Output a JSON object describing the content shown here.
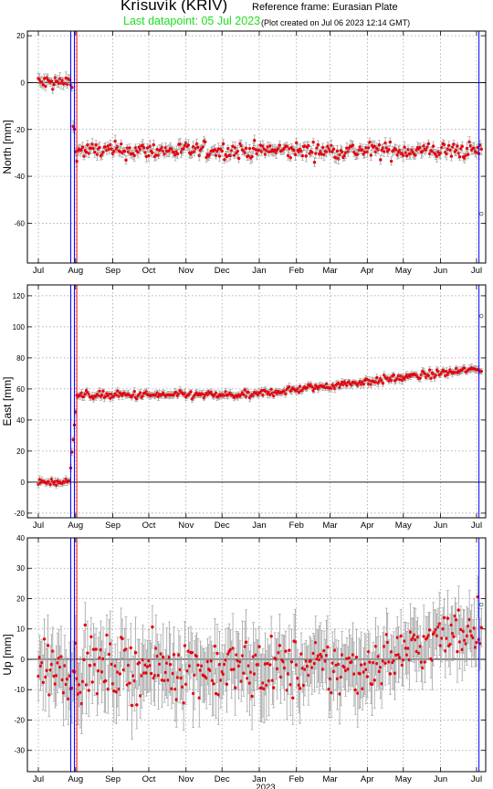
{
  "header": {
    "title": "Krísuvík (KRIV)",
    "reference_frame": "Reference frame: Eurasian Plate",
    "last_datapoint": "Last datapoint: 05 Jul 2023",
    "created": "(Plot created on Jul 06 2023 12:14 GMT)"
  },
  "colors": {
    "data": "#e8000b",
    "error_bar": "#a0a0a0",
    "event_blue": "#0000ff",
    "event_red": "#ff0000",
    "last_point": "#22dd22",
    "outlier": "#4a7a7a"
  },
  "chart_data": [
    {
      "type": "scatter",
      "ylabel": "North [mm]",
      "ylim": [
        -77,
        22
      ],
      "yticks": [
        20,
        0,
        -20,
        -40,
        -60
      ],
      "xlabel": "",
      "grid": true,
      "x_tick_labels": [
        "Jul",
        "Aug",
        "Sep",
        "Oct",
        "Nov",
        "Dec",
        "Jan",
        "Feb",
        "Mar",
        "Apr",
        "May",
        "Jun",
        "Jul"
      ],
      "x_tick_dates": [
        "2022-07-01",
        "2022-08-01",
        "2022-09-01",
        "2022-10-01",
        "2022-11-01",
        "2022-12-01",
        "2023-01-01",
        "2023-02-01",
        "2023-03-01",
        "2023-04-01",
        "2023-05-01",
        "2023-06-01",
        "2023-07-01"
      ],
      "event_lines": [
        {
          "date": "2022-07-28",
          "color": "blue"
        },
        {
          "date": "2022-07-31",
          "color": "blue"
        },
        {
          "date": "2022-08-02",
          "color": "red"
        },
        {
          "date": "2023-07-03",
          "color": "blue"
        }
      ],
      "series": [
        {
          "segments": [
            {
              "start": "2022-07-01",
              "end": "2022-07-29",
              "level": 0,
              "noise": 2.5,
              "error": 2
            },
            {
              "start": "2022-07-30",
              "end": "2022-07-31",
              "level": -20,
              "noise": 1.5,
              "error": 2
            },
            {
              "start": "2022-08-01",
              "end": "2023-07-05",
              "level": -29,
              "noise": 2.5,
              "error": 2
            }
          ],
          "outliers": [
            {
              "date": "2023-07-05",
              "value": -56
            }
          ]
        }
      ]
    },
    {
      "type": "scatter",
      "ylabel": "East [mm]",
      "ylim": [
        -23,
        127
      ],
      "yticks": [
        120,
        100,
        80,
        60,
        40,
        20,
        0,
        -20
      ],
      "xlabel": "",
      "grid": true,
      "x_tick_labels": [
        "Jul",
        "Aug",
        "Sep",
        "Oct",
        "Nov",
        "Dec",
        "Jan",
        "Feb",
        "Mar",
        "Apr",
        "May",
        "Jun",
        "Jul"
      ],
      "x_tick_dates": [
        "2022-07-01",
        "2022-08-01",
        "2022-09-01",
        "2022-10-01",
        "2022-11-01",
        "2022-12-01",
        "2023-01-01",
        "2023-02-01",
        "2023-03-01",
        "2023-04-01",
        "2023-05-01",
        "2023-06-01",
        "2023-07-01"
      ],
      "event_lines": [
        {
          "date": "2022-07-28",
          "color": "blue"
        },
        {
          "date": "2022-07-31",
          "color": "blue"
        },
        {
          "date": "2022-08-02",
          "color": "red"
        },
        {
          "date": "2023-07-03",
          "color": "blue"
        }
      ],
      "series": [
        {
          "segments": [
            {
              "start": "2022-07-01",
              "end": "2022-07-27",
              "level": 0,
              "noise": 1.5,
              "error": 2
            },
            {
              "start": "2022-07-28",
              "end": "2022-08-01",
              "level": 10,
              "ramp_to": 50,
              "noise": 3,
              "error": 2
            },
            {
              "start": "2022-08-02",
              "end": "2022-12-31",
              "level": 56,
              "noise": 1.8,
              "error": 2
            },
            {
              "start": "2023-01-01",
              "end": "2023-07-05",
              "level": 57,
              "ramp_to": 73,
              "noise": 1.8,
              "error": 2
            }
          ],
          "outliers": [
            {
              "date": "2023-07-05",
              "value": 107
            }
          ]
        }
      ]
    },
    {
      "type": "scatter",
      "ylabel": "Up [mm]",
      "ylim": [
        -37,
        40
      ],
      "yticks": [
        40,
        30,
        20,
        10,
        0,
        -10,
        -20,
        -30
      ],
      "xlabel": "2023",
      "grid": true,
      "x_tick_labels": [
        "Jul",
        "Aug",
        "Sep",
        "Oct",
        "Nov",
        "Dec",
        "Jan",
        "Feb",
        "Mar",
        "Apr",
        "May",
        "Jun",
        "Jul"
      ],
      "x_tick_dates": [
        "2022-07-01",
        "2022-08-01",
        "2022-09-01",
        "2022-10-01",
        "2022-11-01",
        "2022-12-01",
        "2023-01-01",
        "2023-02-01",
        "2023-03-01",
        "2023-04-01",
        "2023-05-01",
        "2023-06-01",
        "2023-07-01"
      ],
      "event_lines": [
        {
          "date": "2022-07-28",
          "color": "blue"
        },
        {
          "date": "2022-07-31",
          "color": "blue"
        },
        {
          "date": "2022-08-02",
          "color": "red"
        },
        {
          "date": "2023-07-03",
          "color": "blue"
        }
      ],
      "series": [
        {
          "segments": [
            {
              "start": "2022-07-01",
              "end": "2023-03-31",
              "level": -3,
              "noise": 7,
              "error": 9
            },
            {
              "start": "2023-04-01",
              "end": "2023-07-05",
              "level": -2,
              "ramp_to": 12,
              "noise": 6,
              "error": 8
            }
          ],
          "outliers": [
            {
              "date": "2023-07-05",
              "value": 18
            }
          ]
        }
      ]
    }
  ]
}
